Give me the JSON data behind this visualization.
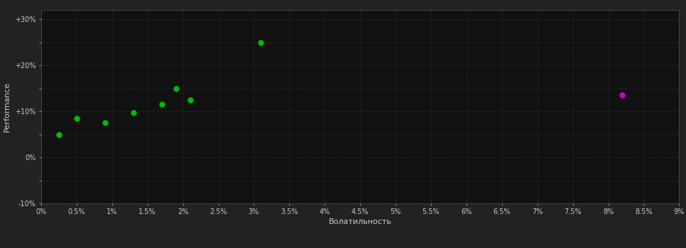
{
  "green_points": [
    [
      0.0025,
      0.05
    ],
    [
      0.005,
      0.085
    ],
    [
      0.009,
      0.075
    ],
    [
      0.013,
      0.097
    ],
    [
      0.017,
      0.115
    ],
    [
      0.019,
      0.15
    ],
    [
      0.021,
      0.125
    ],
    [
      0.031,
      0.25
    ]
  ],
  "magenta_points": [
    [
      0.082,
      0.135
    ]
  ],
  "green_color": "#00bb00",
  "magenta_color": "#cc00cc",
  "bg_color": "#222222",
  "plot_bg_color": "#111111",
  "grid_color": "#3a3a3a",
  "text_color": "#cccccc",
  "xlabel": "Волатильность",
  "ylabel": "Performance",
  "xlim": [
    0,
    0.09
  ],
  "ylim": [
    -0.1,
    0.32
  ],
  "xtick_vals": [
    0.0,
    0.005,
    0.01,
    0.015,
    0.02,
    0.025,
    0.03,
    0.035,
    0.04,
    0.045,
    0.05,
    0.055,
    0.06,
    0.065,
    0.07,
    0.075,
    0.08,
    0.085,
    0.09
  ],
  "xtick_labels": [
    "0%",
    "0.5%",
    "1%",
    "1.5%",
    "2%",
    "2.5%",
    "3%",
    "3.5%",
    "4%",
    "4.5%",
    "5%",
    "5.5%",
    "6%",
    "6.5%",
    "7%",
    "7.5%",
    "8%",
    "8.5%",
    "9%"
  ],
  "ytick_major_vals": [
    -0.1,
    0.0,
    0.1,
    0.2,
    0.3
  ],
  "ytick_major_labels": [
    "-10%",
    "0%",
    "+10%",
    "+20%",
    "+30%"
  ],
  "ytick_minor_vals": [
    -0.05,
    0.05,
    0.15,
    0.25
  ],
  "marker_size": 6,
  "figsize": [
    9.66,
    3.5
  ],
  "dpi": 100
}
